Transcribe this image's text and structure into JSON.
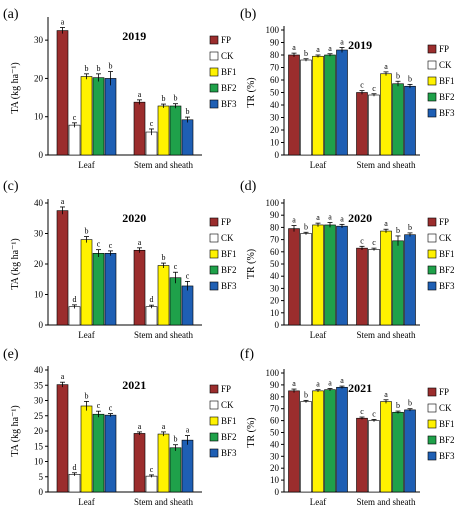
{
  "figure": {
    "colors": {
      "FP": "#9B2D2D",
      "CK": "#ffffff",
      "BF1": "#FFF200",
      "BF2": "#1FA14A",
      "BF3": "#1E5FB4"
    }
  },
  "chart_data": [
    {
      "type": "bar",
      "panel_label": "(a)",
      "title": "2019",
      "ylabel": "TA (kg ha⁻¹)",
      "categories": [
        "Leaf",
        "Stem and sheath"
      ],
      "ylim": [
        0,
        35
      ],
      "yticks": [
        0,
        10,
        20,
        30
      ],
      "series": [
        {
          "name": "FP",
          "values": [
            32.5,
            13.8
          ],
          "errors": [
            0.8,
            0.6
          ],
          "letters": [
            "a",
            "a"
          ]
        },
        {
          "name": "CK",
          "values": [
            7.8,
            6.0
          ],
          "errors": [
            0.6,
            0.8
          ],
          "letters": [
            "c",
            "c"
          ]
        },
        {
          "name": "BF1",
          "values": [
            20.5,
            12.8
          ],
          "errors": [
            0.7,
            0.5
          ],
          "letters": [
            "b",
            "b"
          ]
        },
        {
          "name": "BF2",
          "values": [
            20.2,
            12.8
          ],
          "errors": [
            1.0,
            0.6
          ],
          "letters": [
            "b",
            "b"
          ]
        },
        {
          "name": "BF3",
          "values": [
            20.0,
            9.2
          ],
          "errors": [
            1.8,
            0.7
          ],
          "letters": [
            "b",
            "b"
          ]
        }
      ],
      "xlabel": "",
      "legend": "right"
    },
    {
      "type": "bar",
      "panel_label": "(b)",
      "title": "2019",
      "ylabel": "TR (%)",
      "categories": [
        "Leaf",
        "Stem and sheath"
      ],
      "ylim": [
        0,
        100
      ],
      "yticks": [
        0,
        10,
        20,
        30,
        40,
        50,
        60,
        70,
        80,
        90,
        100
      ],
      "series": [
        {
          "name": "FP",
          "values": [
            80,
            50
          ],
          "errors": [
            1.5,
            1.5
          ],
          "letters": [
            "a",
            "c"
          ]
        },
        {
          "name": "CK",
          "values": [
            76,
            48
          ],
          "errors": [
            1.0,
            1.0
          ],
          "letters": [
            "b",
            "c"
          ]
        },
        {
          "name": "BF1",
          "values": [
            79,
            65
          ],
          "errors": [
            1.0,
            1.5
          ],
          "letters": [
            "a",
            "a"
          ]
        },
        {
          "name": "BF2",
          "values": [
            80,
            57
          ],
          "errors": [
            1.0,
            2.0
          ],
          "letters": [
            "a",
            "b"
          ]
        },
        {
          "name": "BF3",
          "values": [
            84,
            55
          ],
          "errors": [
            2.0,
            1.5
          ],
          "letters": [
            "a",
            "b"
          ]
        }
      ],
      "xlabel": "",
      "legend": "right"
    },
    {
      "type": "bar",
      "panel_label": "(c)",
      "title": "2020",
      "ylabel": "TA (kg ha⁻¹)",
      "categories": [
        "Leaf",
        "Stem and sheath"
      ],
      "ylim": [
        0,
        40
      ],
      "yticks": [
        0,
        10,
        20,
        30,
        40
      ],
      "series": [
        {
          "name": "FP",
          "values": [
            37.5,
            24.5
          ],
          "errors": [
            1.2,
            0.8
          ],
          "letters": [
            "a",
            "a"
          ]
        },
        {
          "name": "CK",
          "values": [
            6.0,
            6.0
          ],
          "errors": [
            0.6,
            0.5
          ],
          "letters": [
            "d",
            "d"
          ]
        },
        {
          "name": "BF1",
          "values": [
            28.0,
            19.5
          ],
          "errors": [
            1.0,
            0.8
          ],
          "letters": [
            "b",
            "b"
          ]
        },
        {
          "name": "BF2",
          "values": [
            23.5,
            15.5
          ],
          "errors": [
            1.2,
            1.8
          ],
          "letters": [
            "c",
            "c"
          ]
        },
        {
          "name": "BF3",
          "values": [
            23.5,
            12.8
          ],
          "errors": [
            0.8,
            1.5
          ],
          "letters": [
            "c",
            "c"
          ]
        }
      ],
      "xlabel": "",
      "legend": "right"
    },
    {
      "type": "bar",
      "panel_label": "(d)",
      "title": "2020",
      "ylabel": "TR (%)",
      "categories": [
        "Leaf",
        "Stem and sheath"
      ],
      "ylim": [
        0,
        100
      ],
      "yticks": [
        0,
        10,
        20,
        30,
        40,
        50,
        60,
        70,
        80,
        90,
        100
      ],
      "series": [
        {
          "name": "FP",
          "values": [
            79,
            63
          ],
          "errors": [
            2.5,
            1.5
          ],
          "letters": [
            "a",
            "c"
          ]
        },
        {
          "name": "CK",
          "values": [
            75,
            62
          ],
          "errors": [
            1.0,
            1.0
          ],
          "letters": [
            "b",
            "c"
          ]
        },
        {
          "name": "BF1",
          "values": [
            82,
            77
          ],
          "errors": [
            1.5,
            1.5
          ],
          "letters": [
            "a",
            "a"
          ]
        },
        {
          "name": "BF2",
          "values": [
            82,
            69
          ],
          "errors": [
            2.0,
            4.0
          ],
          "letters": [
            "a",
            "b"
          ]
        },
        {
          "name": "BF3",
          "values": [
            81,
            74
          ],
          "errors": [
            1.5,
            1.5
          ],
          "letters": [
            "a",
            "b"
          ]
        }
      ],
      "xlabel": "",
      "legend": "right"
    },
    {
      "type": "bar",
      "panel_label": "(e)",
      "title": "2021",
      "ylabel": "TA (kg ha⁻¹)",
      "categories": [
        "Leaf",
        "Stem and sheath"
      ],
      "ylim": [
        0,
        40
      ],
      "yticks": [
        0,
        5,
        10,
        15,
        20,
        25,
        30,
        35,
        40
      ],
      "series": [
        {
          "name": "FP",
          "values": [
            35.2,
            19.2
          ],
          "errors": [
            0.8,
            0.5
          ],
          "letters": [
            "a",
            "a"
          ]
        },
        {
          "name": "CK",
          "values": [
            5.8,
            5.2
          ],
          "errors": [
            0.5,
            0.4
          ],
          "letters": [
            "d",
            "c"
          ]
        },
        {
          "name": "BF1",
          "values": [
            28.2,
            19.0
          ],
          "errors": [
            1.5,
            0.7
          ],
          "letters": [
            "b",
            "a"
          ]
        },
        {
          "name": "BF2",
          "values": [
            25.5,
            14.5
          ],
          "errors": [
            1.0,
            1.0
          ],
          "letters": [
            "c",
            "b"
          ]
        },
        {
          "name": "BF3",
          "values": [
            25.2,
            17.0
          ],
          "errors": [
            0.5,
            1.5
          ],
          "letters": [
            "c",
            "a"
          ]
        }
      ],
      "xlabel": "",
      "legend": "right"
    },
    {
      "type": "bar",
      "panel_label": "(f)",
      "title": "2021",
      "ylabel": "TR (%)",
      "categories": [
        "Leaf",
        "Stem and sheath"
      ],
      "ylim": [
        0,
        100
      ],
      "yticks": [
        0,
        10,
        20,
        30,
        40,
        50,
        60,
        70,
        80,
        90,
        100
      ],
      "series": [
        {
          "name": "FP",
          "values": [
            85,
            62
          ],
          "errors": [
            1.5,
            1.0
          ],
          "letters": [
            "a",
            "c"
          ]
        },
        {
          "name": "CK",
          "values": [
            76,
            60
          ],
          "errors": [
            1.0,
            1.0
          ],
          "letters": [
            "b",
            "c"
          ]
        },
        {
          "name": "BF1",
          "values": [
            85,
            76
          ],
          "errors": [
            1.0,
            1.5
          ],
          "letters": [
            "a",
            "a"
          ]
        },
        {
          "name": "BF2",
          "values": [
            86,
            67
          ],
          "errors": [
            1.0,
            1.0
          ],
          "letters": [
            "a",
            "b"
          ]
        },
        {
          "name": "BF3",
          "values": [
            88,
            69
          ],
          "errors": [
            1.0,
            1.0
          ],
          "letters": [
            "a",
            "b"
          ]
        }
      ],
      "xlabel": "",
      "legend": "right"
    }
  ]
}
